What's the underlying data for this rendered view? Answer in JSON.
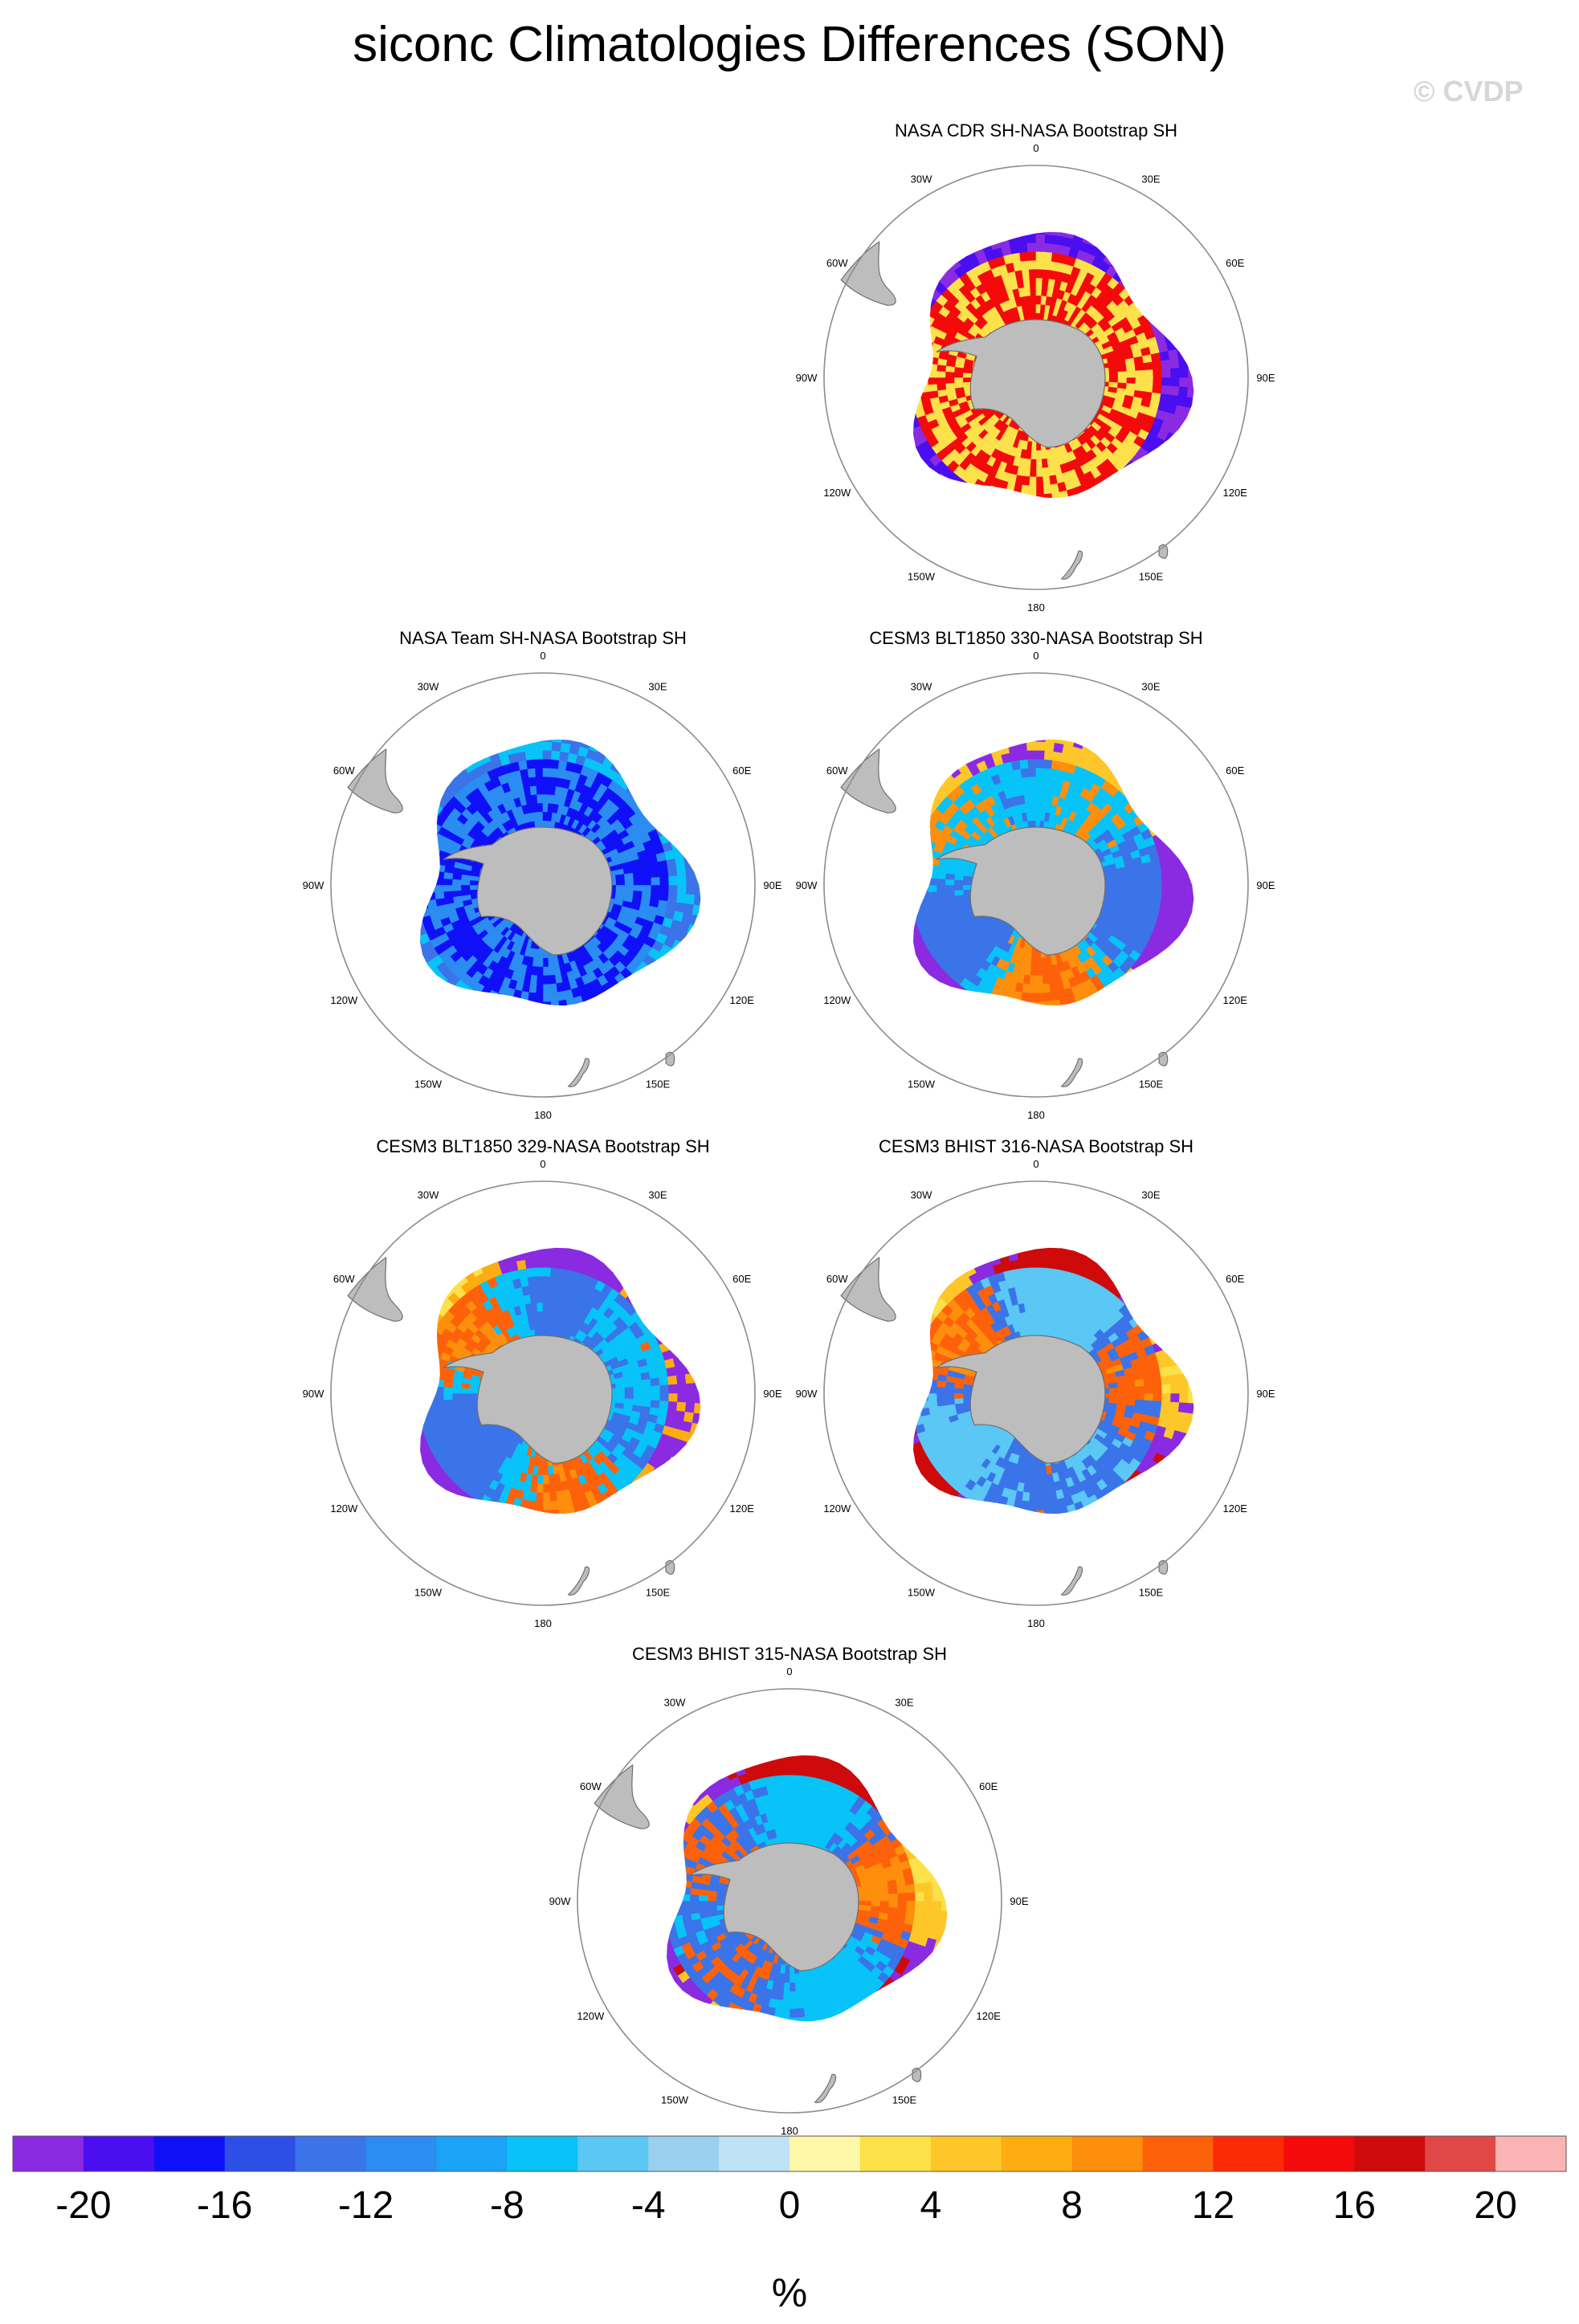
{
  "title": "siconc Climatologies Differences (SON)",
  "watermark": "© CVDP",
  "lon_labels": [
    "0",
    "30E",
    "60E",
    "90E",
    "120E",
    "150E",
    "180",
    "150W",
    "120W",
    "90W",
    "60W",
    "30W"
  ],
  "colors": {
    "land": "#bdbdbd",
    "land_edge": "#6e6e6e",
    "frame": "#8c8c8c",
    "scale": [
      "#8a2be2",
      "#4b0ef0",
      "#1010f8",
      "#2e4fe6",
      "#3b74e8",
      "#2b8cf2",
      "#1aa3f7",
      "#08c3f8",
      "#5ac7f5",
      "#9ad0ee",
      "#bee2f6",
      "#fff7a8",
      "#fde14a",
      "#fdc72a",
      "#fdad12",
      "#fd8f0c",
      "#fd620a",
      "#fd2a08",
      "#f40a0a",
      "#cf0a0a",
      "#e04848",
      "#fbb4b4"
    ]
  },
  "chart_data": {
    "type": "map",
    "units": "%",
    "colorbar": {
      "levels": [
        -20,
        -18,
        -16,
        -14,
        -12,
        -10,
        -8,
        -6,
        -4,
        -2,
        0,
        2,
        4,
        6,
        8,
        10,
        12,
        14,
        16,
        18,
        20
      ],
      "tick_labels": [
        "-20",
        "-16",
        "-12",
        "-8",
        "-4",
        "0",
        "4",
        "8",
        "12",
        "16",
        "20"
      ]
    },
    "panels": [
      {
        "title": "NASA CDR SH-NASA Bootstrap SH",
        "inner": [
          18,
          12
        ],
        "outer": [
          1,
          0
        ],
        "mix": "none"
      },
      {
        "title": "NASA Team SH-NASA Bootstrap SH",
        "inner": [
          5,
          2
        ],
        "outer": [
          7,
          4
        ],
        "mix": "none"
      },
      {
        "title": "CESM3 BLT1850 330-NASA Bootstrap SH",
        "inner": [
          16,
          15,
          7,
          4
        ],
        "outer": [
          12,
          13,
          0
        ],
        "mix": "mixed"
      },
      {
        "title": "CESM3 BLT1850 329-NASA Bootstrap SH",
        "inner": [
          15,
          16,
          7,
          4
        ],
        "outer": [
          12,
          14,
          0
        ],
        "mix": "mixed"
      },
      {
        "title": "CESM3 BHIST 316-NASA Bootstrap SH",
        "inner": [
          15,
          16,
          4,
          8
        ],
        "outer": [
          12,
          13,
          0,
          19
        ],
        "mix": "mixed"
      },
      {
        "title": "CESM3 BHIST 315-NASA Bootstrap SH",
        "inner": [
          15,
          16,
          4,
          7
        ],
        "outer": [
          12,
          13,
          0,
          19
        ],
        "mix": "mixed"
      }
    ]
  }
}
